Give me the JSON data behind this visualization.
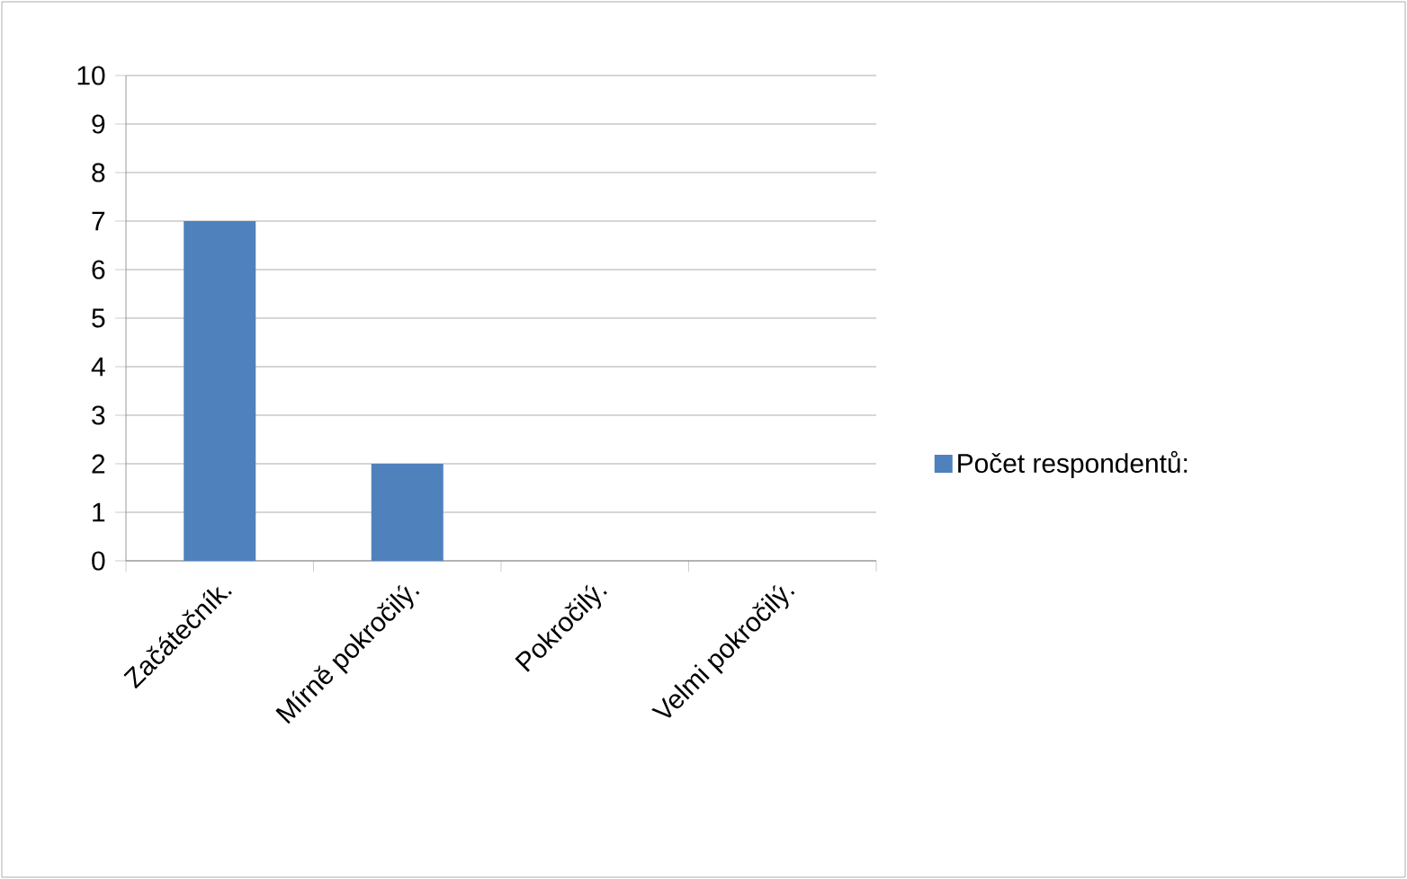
{
  "chart_data": {
    "type": "bar",
    "categories": [
      "Začátečník.",
      "Mírně pokročilý.",
      "Pokročilý.",
      "Velmi pokročilý."
    ],
    "series": [
      {
        "name": "Počet respondentů:",
        "color": "#4f81bd",
        "values": [
          7,
          2,
          0,
          0
        ]
      }
    ],
    "ylim": [
      0,
      10
    ],
    "yticks": [
      0,
      1,
      2,
      3,
      4,
      5,
      6,
      7,
      8,
      9,
      10
    ],
    "grid": "y",
    "legend": "right"
  }
}
